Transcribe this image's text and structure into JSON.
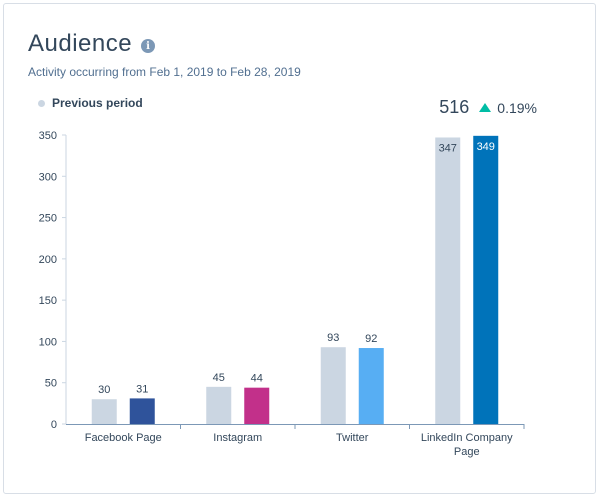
{
  "header": {
    "title": "Audience",
    "info_icon": "info-icon",
    "subtitle": "Activity occurring from Feb 1, 2019 to Feb 28, 2019"
  },
  "legend": {
    "label": "Previous period"
  },
  "summary": {
    "total": "516",
    "change": "0.19%",
    "trend": "up",
    "trend_color": "#00bda5"
  },
  "chart_data": {
    "type": "bar",
    "categories": [
      [
        "Facebook Page"
      ],
      [
        "Instagram"
      ],
      [
        "Twitter"
      ],
      [
        "LinkedIn Company",
        "Page"
      ]
    ],
    "series": [
      {
        "name": "Previous period",
        "values": [
          30,
          45,
          93,
          347
        ],
        "colors": [
          "#cbd6e2",
          "#cbd6e2",
          "#cbd6e2",
          "#cbd6e2"
        ]
      },
      {
        "values": [
          31,
          44,
          92,
          349
        ],
        "colors": [
          "#2f539b",
          "#c2308a",
          "#57aef3",
          "#0073ba"
        ]
      }
    ],
    "yticks": [
      0,
      50,
      100,
      150,
      200,
      250,
      300,
      350
    ],
    "ylim": [
      0,
      350
    ],
    "grid": false,
    "legend_position": "top-left"
  }
}
